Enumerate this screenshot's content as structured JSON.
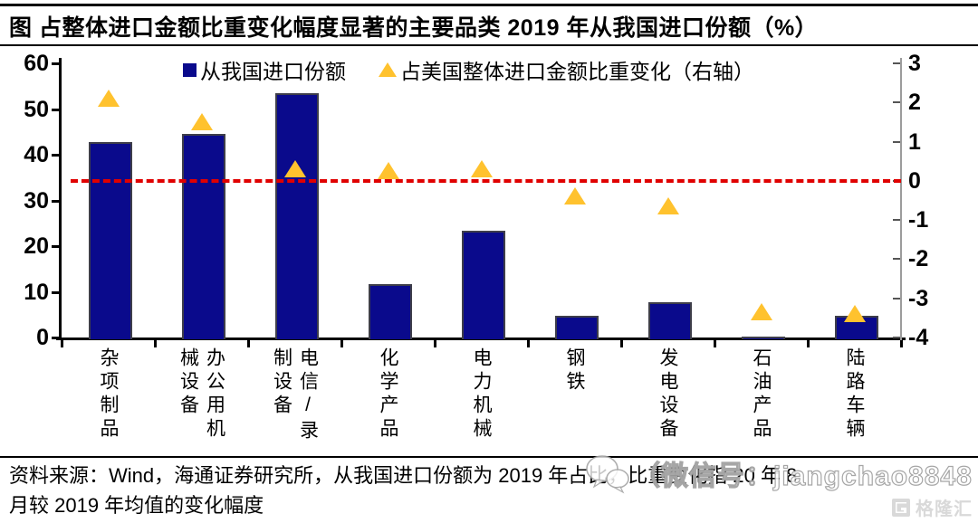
{
  "title": "图  占整体进口金额比重变化幅度显著的主要品类 2019 年从我国进口份额（%）",
  "legend": {
    "bar_label": "从我国进口份额",
    "marker_label": "占美国整体进口金额比重变化（右轴）"
  },
  "chart_data": {
    "type": "bar",
    "title": "占整体进口金额比重变化幅度显著的主要品类 2019 年从我国进口份额（%）",
    "categories": [
      "杂项制品",
      "办公用机械设备",
      "电信/录制设备",
      "化学产品",
      "电力机械",
      "钢铁",
      "发电设备",
      "石油产品",
      "陆路车辆"
    ],
    "series": [
      {
        "name": "从我国进口份额",
        "type": "bar",
        "axis": "left",
        "values": [
          42.8,
          44.5,
          53.5,
          11.7,
          23.3,
          4.8,
          7.7,
          0.2,
          4.7
        ]
      },
      {
        "name": "占美国整体进口金额比重变化（右轴）",
        "type": "scatter",
        "marker": "triangle",
        "axis": "right",
        "values": [
          2.1,
          1.5,
          0.3,
          0.25,
          0.3,
          -0.4,
          -0.65,
          -3.35,
          -3.4
        ]
      }
    ],
    "left_axis": {
      "min": 0,
      "max": 60,
      "ticks": [
        60,
        50,
        40,
        30,
        20,
        10,
        0
      ]
    },
    "right_axis": {
      "min": -4,
      "max": 3,
      "ticks": [
        3,
        2,
        1,
        0,
        -1,
        -2,
        -3,
        -4
      ]
    },
    "reference_line": {
      "axis": "right",
      "value": 0,
      "style": "dashed",
      "color": "#e00000"
    },
    "legend_position": "top",
    "grid": false
  },
  "colors": {
    "bar": "#0a0a8c",
    "marker": "#ffc22e",
    "reference": "#e00000",
    "axis": "#000000",
    "right_axis_line": "#9c9c9c"
  },
  "source": {
    "line1": "资料来源：Wind，海通证券研究所，从我国进口份额为 2019 年占比，比重变化指 20 年 8",
    "line2": "月较 2019 年均值的变化幅度"
  },
  "watermark": {
    "wechat_text": "（微信号：jiangchao8848",
    "brand": "格隆汇"
  }
}
